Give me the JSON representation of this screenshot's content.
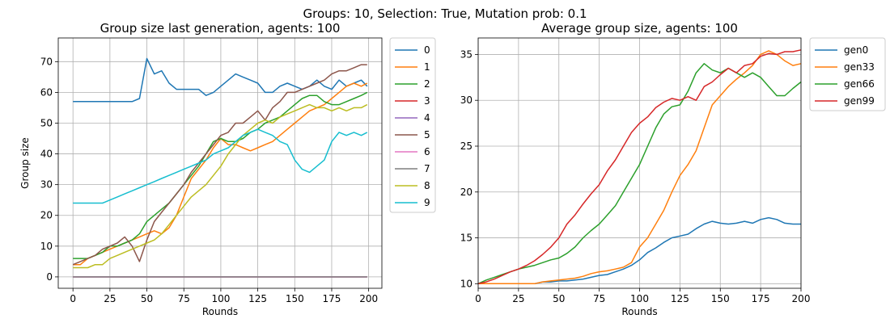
{
  "suptitle": "Groups: 10, Selection: True, Mutation prob: 0.1",
  "chart_data": [
    {
      "type": "line",
      "title": "Group size last generation, agents: 100",
      "xlabel": "Rounds",
      "ylabel": "Group size",
      "xlim": [
        -9.95,
        208.95
      ],
      "ylim": [
        -3.7,
        77.7
      ],
      "xticks": [
        0,
        25,
        50,
        75,
        100,
        125,
        150,
        175,
        200
      ],
      "yticks": [
        0,
        10,
        20,
        30,
        40,
        50,
        60,
        70
      ],
      "grid": true,
      "legend": "outside-right",
      "x": [
        0,
        5,
        10,
        15,
        20,
        25,
        30,
        35,
        40,
        45,
        50,
        55,
        60,
        65,
        70,
        75,
        80,
        85,
        90,
        95,
        100,
        105,
        110,
        115,
        120,
        125,
        130,
        135,
        140,
        145,
        150,
        155,
        160,
        165,
        170,
        175,
        180,
        185,
        190,
        195,
        199
      ],
      "series": [
        {
          "name": "0",
          "color": "#1f77b4",
          "values": [
            57,
            57,
            57,
            57,
            57,
            57,
            57,
            57,
            57,
            58,
            71,
            66,
            67,
            63,
            61,
            61,
            61,
            61,
            59,
            60,
            62,
            64,
            66,
            65,
            64,
            63,
            60,
            60,
            62,
            63,
            62,
            61,
            62,
            64,
            62,
            61,
            64,
            62,
            63,
            64,
            62
          ]
        },
        {
          "name": "1",
          "color": "#ff7f0e",
          "values": [
            4,
            4,
            6,
            7,
            8,
            9,
            10,
            11,
            12,
            13,
            14,
            15,
            14,
            16,
            20,
            26,
            32,
            35,
            38,
            42,
            45,
            43,
            43,
            42,
            41,
            42,
            43,
            44,
            46,
            48,
            50,
            52,
            54,
            55,
            56,
            58,
            60,
            62,
            63,
            62,
            63
          ]
        },
        {
          "name": "2",
          "color": "#2ca02c",
          "values": [
            6,
            6,
            6,
            7,
            8,
            10,
            10,
            11,
            12,
            14,
            18,
            20,
            22,
            24,
            27,
            30,
            33,
            36,
            40,
            44,
            45,
            44,
            44,
            45,
            47,
            48,
            50,
            51,
            52,
            54,
            56,
            58,
            59,
            59,
            57,
            56,
            56,
            57,
            58,
            59,
            60
          ]
        },
        {
          "name": "3",
          "color": "#d62728",
          "values": [
            0,
            0,
            0,
            0,
            0,
            0,
            0,
            0,
            0,
            0,
            0,
            0,
            0,
            0,
            0,
            0,
            0,
            0,
            0,
            0,
            0,
            0,
            0,
            0,
            0,
            0,
            0,
            0,
            0,
            0,
            0,
            0,
            0,
            0,
            0,
            0,
            0,
            0,
            0,
            0,
            0
          ]
        },
        {
          "name": "4",
          "color": "#9467bd",
          "values": [
            0,
            0,
            0,
            0,
            0,
            0,
            0,
            0,
            0,
            0,
            0,
            0,
            0,
            0,
            0,
            0,
            0,
            0,
            0,
            0,
            0,
            0,
            0,
            0,
            0,
            0,
            0,
            0,
            0,
            0,
            0,
            0,
            0,
            0,
            0,
            0,
            0,
            0,
            0,
            0,
            0
          ]
        },
        {
          "name": "5",
          "color": "#8c564b",
          "values": [
            4,
            5,
            6,
            7,
            9,
            10,
            11,
            13,
            10,
            5,
            12,
            18,
            21,
            24,
            27,
            30,
            34,
            37,
            40,
            43,
            46,
            47,
            50,
            50,
            52,
            54,
            51,
            55,
            57,
            60,
            60,
            61,
            62,
            63,
            64,
            66,
            67,
            67,
            68,
            69,
            69
          ]
        },
        {
          "name": "6",
          "color": "#e377c2",
          "values": [
            0,
            0,
            0,
            0,
            0,
            0,
            0,
            0,
            0,
            0,
            0,
            0,
            0,
            0,
            0,
            0,
            0,
            0,
            0,
            0,
            0,
            0,
            0,
            0,
            0,
            0,
            0,
            0,
            0,
            0,
            0,
            0,
            0,
            0,
            0,
            0,
            0,
            0,
            0,
            0,
            0
          ]
        },
        {
          "name": "7",
          "color": "#7f7f7f",
          "values": [
            0,
            0,
            0,
            0,
            0,
            0,
            0,
            0,
            0,
            0,
            0,
            0,
            0,
            0,
            0,
            0,
            0,
            0,
            0,
            0,
            0,
            0,
            0,
            0,
            0,
            0,
            0,
            0,
            0,
            0,
            0,
            0,
            0,
            0,
            0,
            0,
            0,
            0,
            0,
            0,
            0
          ]
        },
        {
          "name": "8",
          "color": "#bcbd22",
          "values": [
            3,
            3,
            3,
            4,
            4,
            6,
            7,
            8,
            9,
            10,
            11,
            12,
            14,
            17,
            20,
            23,
            26,
            28,
            30,
            33,
            36,
            40,
            43,
            46,
            48,
            50,
            51,
            50,
            52,
            53,
            54,
            55,
            56,
            55,
            55,
            54,
            55,
            54,
            55,
            55,
            56
          ]
        },
        {
          "name": "9",
          "color": "#17becf",
          "values": [
            24,
            24,
            24,
            24,
            24,
            25,
            26,
            27,
            28,
            29,
            30,
            31,
            32,
            33,
            34,
            35,
            36,
            37,
            38,
            40,
            41,
            42,
            44,
            46,
            47,
            48,
            47,
            46,
            44,
            43,
            38,
            35,
            34,
            36,
            38,
            44,
            47,
            46,
            47,
            46,
            47
          ]
        }
      ]
    },
    {
      "type": "line",
      "title": "Average group size, agents: 100",
      "xlabel": "Rounds",
      "ylabel": "",
      "xlim": [
        0,
        200
      ],
      "ylim": [
        9.5,
        36.8
      ],
      "xticks": [
        0,
        25,
        50,
        75,
        100,
        125,
        150,
        175,
        200
      ],
      "yticks": [
        10,
        15,
        20,
        25,
        30,
        35
      ],
      "grid": true,
      "legend": "outside-right",
      "x": [
        0,
        5,
        10,
        15,
        20,
        25,
        30,
        35,
        40,
        45,
        50,
        55,
        60,
        65,
        70,
        75,
        80,
        85,
        90,
        95,
        100,
        105,
        110,
        115,
        120,
        125,
        130,
        135,
        140,
        145,
        150,
        155,
        160,
        165,
        170,
        175,
        180,
        185,
        190,
        195,
        200
      ],
      "series": [
        {
          "name": "gen0",
          "color": "#1f77b4",
          "values": [
            10,
            10,
            10,
            10,
            10,
            10,
            10,
            10,
            10.2,
            10.2,
            10.3,
            10.3,
            10.4,
            10.5,
            10.7,
            10.9,
            11.0,
            11.3,
            11.6,
            12.0,
            12.6,
            13.4,
            13.9,
            14.5,
            15.0,
            15.2,
            15.4,
            16.0,
            16.5,
            16.8,
            16.6,
            16.5,
            16.6,
            16.8,
            16.6,
            17.0,
            17.2,
            17.0,
            16.6,
            16.5,
            16.5
          ]
        },
        {
          "name": "gen33",
          "color": "#ff7f0e",
          "values": [
            10,
            10,
            10,
            10,
            10,
            10,
            10,
            10,
            10.2,
            10.3,
            10.4,
            10.5,
            10.6,
            10.8,
            11.1,
            11.3,
            11.4,
            11.6,
            11.8,
            12.3,
            14.0,
            15.0,
            16.5,
            18.0,
            20.0,
            21.8,
            23.0,
            24.5,
            27.0,
            29.5,
            30.5,
            31.5,
            32.3,
            33.0,
            33.8,
            35.0,
            35.4,
            35.0,
            34.3,
            33.8,
            34.0
          ]
        },
        {
          "name": "gen66",
          "color": "#2ca02c",
          "values": [
            10,
            10.4,
            10.7,
            11.0,
            11.3,
            11.6,
            11.8,
            12.0,
            12.3,
            12.6,
            12.8,
            13.3,
            14.0,
            15.0,
            15.8,
            16.5,
            17.5,
            18.5,
            20.0,
            21.5,
            23.0,
            25.0,
            27.0,
            28.5,
            29.3,
            29.5,
            31.0,
            33.0,
            34.0,
            33.3,
            33.0,
            33.5,
            33.0,
            32.5,
            33.0,
            32.5,
            31.5,
            30.5,
            30.5,
            31.3,
            32.0
          ]
        },
        {
          "name": "gen99",
          "color": "#d62728",
          "values": [
            10,
            10.2,
            10.5,
            10.9,
            11.3,
            11.6,
            12.0,
            12.5,
            13.2,
            14.0,
            15.0,
            16.5,
            17.5,
            18.7,
            19.8,
            20.8,
            22.3,
            23.5,
            25.0,
            26.5,
            27.5,
            28.2,
            29.2,
            29.8,
            30.2,
            30.0,
            30.4,
            30.0,
            31.5,
            32.0,
            32.8,
            33.5,
            33.0,
            33.8,
            34.0,
            34.8,
            35.1,
            35.0,
            35.3,
            35.3,
            35.5
          ]
        }
      ]
    }
  ]
}
